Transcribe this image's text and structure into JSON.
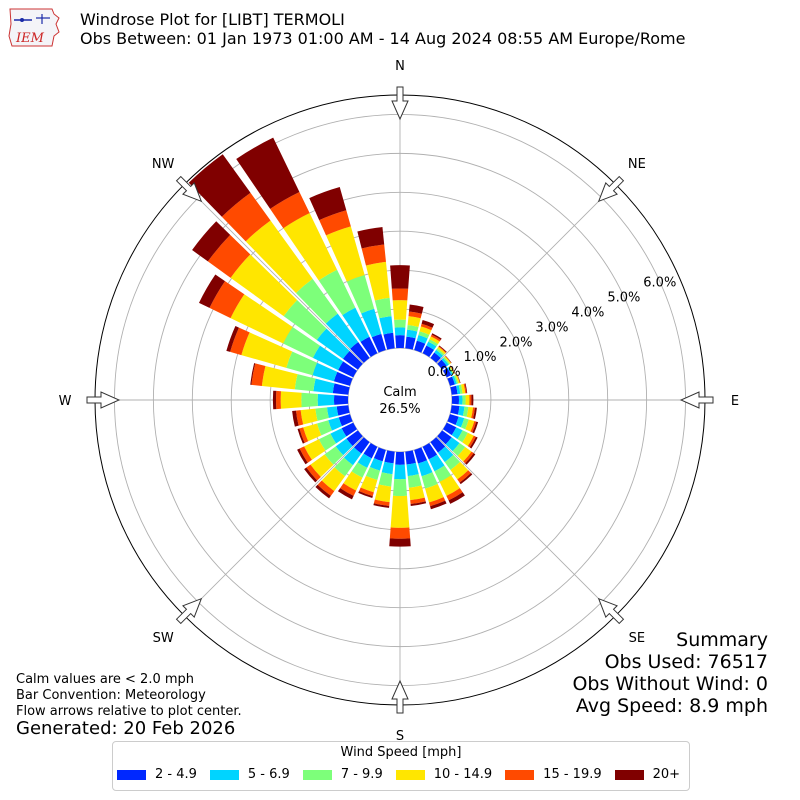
{
  "header": {
    "title_line1": "Windrose Plot for [LIBT] TERMOLI",
    "title_line2": "Obs Between: 01 Jan 1973 01:00 AM - 14 Aug 2024 08:55 AM Europe/Rome",
    "logo_text": "IEM"
  },
  "summary": {
    "heading": "Summary",
    "obs_used": "Obs Used: 76517",
    "obs_without_wind": "Obs Without Wind: 0",
    "avg_speed": "Avg Speed: 8.9 mph"
  },
  "notes": {
    "calm_note": "Calm values are < 2.0 mph",
    "bar_convention": "Bar Convention: Meteorology",
    "flow_arrows": "Flow arrows relative to plot center.",
    "generated": "Generated: 20 Feb 2026"
  },
  "legend": {
    "title": "Wind Speed [mph]",
    "items": [
      {
        "label": "2 - 4.9",
        "color": "#0028ff"
      },
      {
        "label": "5 - 6.9",
        "color": "#00d4ff"
      },
      {
        "label": "7 - 9.9",
        "color": "#7dff7a"
      },
      {
        "label": "10 - 14.9",
        "color": "#ffe600"
      },
      {
        "label": "15 - 19.9",
        "color": "#ff4a00"
      },
      {
        "label": "20+",
        "color": "#800000"
      }
    ]
  },
  "chart_data": {
    "type": "windrose",
    "calm_label": "Calm",
    "calm_percent": "26.5%",
    "radial_ticks": [
      "0.0%",
      "1.0%",
      "2.0%",
      "3.0%",
      "4.0%",
      "5.0%",
      "6.0%"
    ],
    "radial_range": [
      0,
      6.5
    ],
    "compass_labels": [
      "N",
      "NE",
      "E",
      "SE",
      "S",
      "SW",
      "W",
      "NW"
    ],
    "directions_deg": [
      0,
      10,
      20,
      30,
      40,
      50,
      60,
      70,
      80,
      90,
      100,
      110,
      120,
      130,
      140,
      150,
      160,
      170,
      180,
      190,
      200,
      210,
      220,
      230,
      240,
      250,
      260,
      270,
      280,
      290,
      300,
      310,
      320,
      330,
      340,
      350
    ],
    "speed_bins": [
      "2 - 4.9",
      "5 - 6.9",
      "7 - 9.9",
      "10 - 14.9",
      "15 - 19.9",
      "20+"
    ],
    "bin_colors": [
      "#0028ff",
      "#00d4ff",
      "#7dff7a",
      "#ffe600",
      "#ff4a00",
      "#800000"
    ],
    "cumulative_percent": [
      [
        0.33,
        0.53,
        0.73,
        1.23,
        1.53,
        2.13
      ],
      [
        0.3,
        0.48,
        0.6,
        0.83,
        0.95,
        1.13
      ],
      [
        0.25,
        0.4,
        0.5,
        0.63,
        0.7,
        0.8
      ],
      [
        0.22,
        0.33,
        0.4,
        0.48,
        0.53,
        0.57
      ],
      [
        0.17,
        0.25,
        0.3,
        0.35,
        0.37,
        0.39
      ],
      [
        0.15,
        0.21,
        0.25,
        0.28,
        0.29,
        0.3
      ],
      [
        0.13,
        0.17,
        0.2,
        0.22,
        0.23,
        0.24
      ],
      [
        0.13,
        0.18,
        0.22,
        0.26,
        0.27,
        0.28
      ],
      [
        0.15,
        0.22,
        0.28,
        0.35,
        0.38,
        0.4
      ],
      [
        0.18,
        0.27,
        0.35,
        0.45,
        0.5,
        0.55
      ],
      [
        0.2,
        0.33,
        0.43,
        0.55,
        0.6,
        0.65
      ],
      [
        0.23,
        0.38,
        0.5,
        0.65,
        0.7,
        0.75
      ],
      [
        0.27,
        0.45,
        0.6,
        0.77,
        0.83,
        0.88
      ],
      [
        0.3,
        0.55,
        0.73,
        0.93,
        1.0,
        1.05
      ],
      [
        0.33,
        0.63,
        0.88,
        1.18,
        1.28,
        1.33
      ],
      [
        0.36,
        0.7,
        1.0,
        1.4,
        1.53,
        1.63
      ],
      [
        0.36,
        0.7,
        1.03,
        1.4,
        1.5,
        1.58
      ],
      [
        0.33,
        0.63,
        0.93,
        1.25,
        1.35,
        1.4
      ],
      [
        0.33,
        0.7,
        1.13,
        1.95,
        2.23,
        2.43
      ],
      [
        0.3,
        0.58,
        0.9,
        1.3,
        1.4,
        1.45
      ],
      [
        0.3,
        0.55,
        0.8,
        1.13,
        1.23,
        1.28
      ],
      [
        0.33,
        0.6,
        0.88,
        1.25,
        1.4,
        1.5
      ],
      [
        0.36,
        0.73,
        1.08,
        1.55,
        1.7,
        1.78
      ],
      [
        0.36,
        0.7,
        1.05,
        1.5,
        1.63,
        1.7
      ],
      [
        0.33,
        0.65,
        0.98,
        1.4,
        1.53,
        1.6
      ],
      [
        0.3,
        0.58,
        0.88,
        1.25,
        1.35,
        1.4
      ],
      [
        0.3,
        0.55,
        0.85,
        1.23,
        1.35,
        1.45
      ],
      [
        0.36,
        0.78,
        1.2,
        1.73,
        1.85,
        1.93
      ],
      [
        0.4,
        0.9,
        1.38,
        2.23,
        2.5,
        2.53
      ],
      [
        0.43,
        1.0,
        1.7,
        2.9,
        3.2,
        3.3
      ],
      [
        0.43,
        1.15,
        2.0,
        3.5,
        4.1,
        4.4
      ],
      [
        0.47,
        1.3,
        2.35,
        4.03,
        4.75,
        5.25
      ],
      [
        0.5,
        1.4,
        2.5,
        4.35,
        5.23,
        6.45
      ],
      [
        0.47,
        1.3,
        2.38,
        4.0,
        4.6,
        6.15
      ],
      [
        0.43,
        1.1,
        2.0,
        3.3,
        3.73,
        4.35
      ],
      [
        0.4,
        0.83,
        1.3,
        2.23,
        2.68,
        3.13
      ]
    ]
  }
}
